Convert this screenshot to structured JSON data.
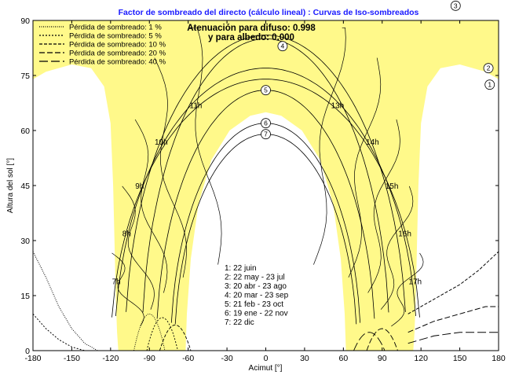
{
  "chart_data": {
    "type": "line",
    "title": "Factor de sombreado del directo (cálculo lineal) : Curvas de Iso-sombreados",
    "xlabel": "Acimut [°]",
    "ylabel": "Altura del sol [°]",
    "xlim": [
      -180,
      180
    ],
    "ylim": [
      0,
      90
    ],
    "xticks": [
      "-180",
      "-150",
      "-120",
      "-90",
      "-60",
      "-30",
      "0",
      "30",
      "60",
      "90",
      "120",
      "150",
      "180"
    ],
    "yticks": [
      "0",
      "15",
      "30",
      "45",
      "60",
      "75",
      "90"
    ],
    "grid": false,
    "legend_position": "top-left",
    "iso_legend": [
      {
        "label": "Pérdida de sombreado: 1 %",
        "dash": "1,1.5"
      },
      {
        "label": "Pérdida de sombreado: 5 %",
        "dash": "2,2"
      },
      {
        "label": "Pérdida de sombreado: 10 %",
        "dash": "4,2"
      },
      {
        "label": "Pérdida de sombreado: 20 %",
        "dash": "7,3"
      },
      {
        "label": "Pérdida de sombreado: 40 %",
        "dash": "11,4"
      }
    ],
    "attenuation_text": [
      "Atenuación para difuso: 0.998",
      "y para albedo: 0.000"
    ],
    "date_legend": [
      "1: 22 juin",
      "2: 22 may - 23 jul",
      "3: 20 abr - 23 ago",
      "4: 20 mar - 23 sep",
      "5: 21 feb - 23 oct",
      "6: 19 ene - 22 nov",
      "7: 22 dic"
    ],
    "sun_paths": [
      {
        "label": "1",
        "max_alt": 74,
        "half_width": 119
      },
      {
        "label": "2",
        "max_alt": 77,
        "half_width": 116
      },
      {
        "label": "3",
        "max_alt": 86,
        "half_width": 108
      },
      {
        "label": "4",
        "max_alt": 85,
        "half_width": 95
      },
      {
        "label": "5",
        "max_alt": 71,
        "half_width": 84
      },
      {
        "label": "6",
        "max_alt": 62,
        "half_width": 73
      },
      {
        "label": "7",
        "max_alt": 59,
        "half_width": 70
      }
    ],
    "hour_lines": [
      {
        "label": "7h",
        "az": -108,
        "alt": 19
      },
      {
        "label": "8h",
        "az": -100,
        "alt": 32
      },
      {
        "label": "9h",
        "az": -90,
        "alt": 45
      },
      {
        "label": "10h",
        "az": -75,
        "alt": 57
      },
      {
        "label": "11h",
        "az": -48,
        "alt": 67
      },
      {
        "label": "13h",
        "az": 48,
        "alt": 67
      },
      {
        "label": "14h",
        "az": 75,
        "alt": 57
      },
      {
        "label": "15h",
        "az": 90,
        "alt": 45
      },
      {
        "label": "16h",
        "az": 100,
        "alt": 32
      },
      {
        "label": "17h",
        "az": 108,
        "alt": 19
      }
    ],
    "shaded_region_color": "#fff98a",
    "horizon_line_color": "#000000"
  }
}
